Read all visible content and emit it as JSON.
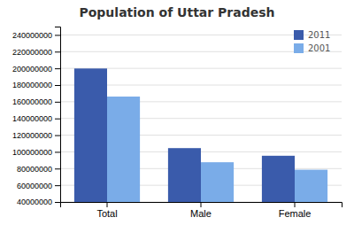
{
  "chart_data": {
    "type": "bar",
    "title": "Population of Uttar Pradesh",
    "categories": [
      "Total",
      "Male",
      "Female"
    ],
    "series": [
      {
        "name": "2011",
        "color": "#3a5bab",
        "values": [
          199812341,
          104480510,
          95331831
        ]
      },
      {
        "name": "2001",
        "color": "#7aace8",
        "values": [
          166197921,
          87565369,
          78631765
        ]
      }
    ],
    "ylim": [
      40000000,
      250000000
    ],
    "yticks": [
      40000000,
      60000000,
      80000000,
      100000000,
      120000000,
      140000000,
      160000000,
      180000000,
      200000000,
      220000000,
      240000000
    ],
    "grid": true,
    "legend": "upper right"
  }
}
